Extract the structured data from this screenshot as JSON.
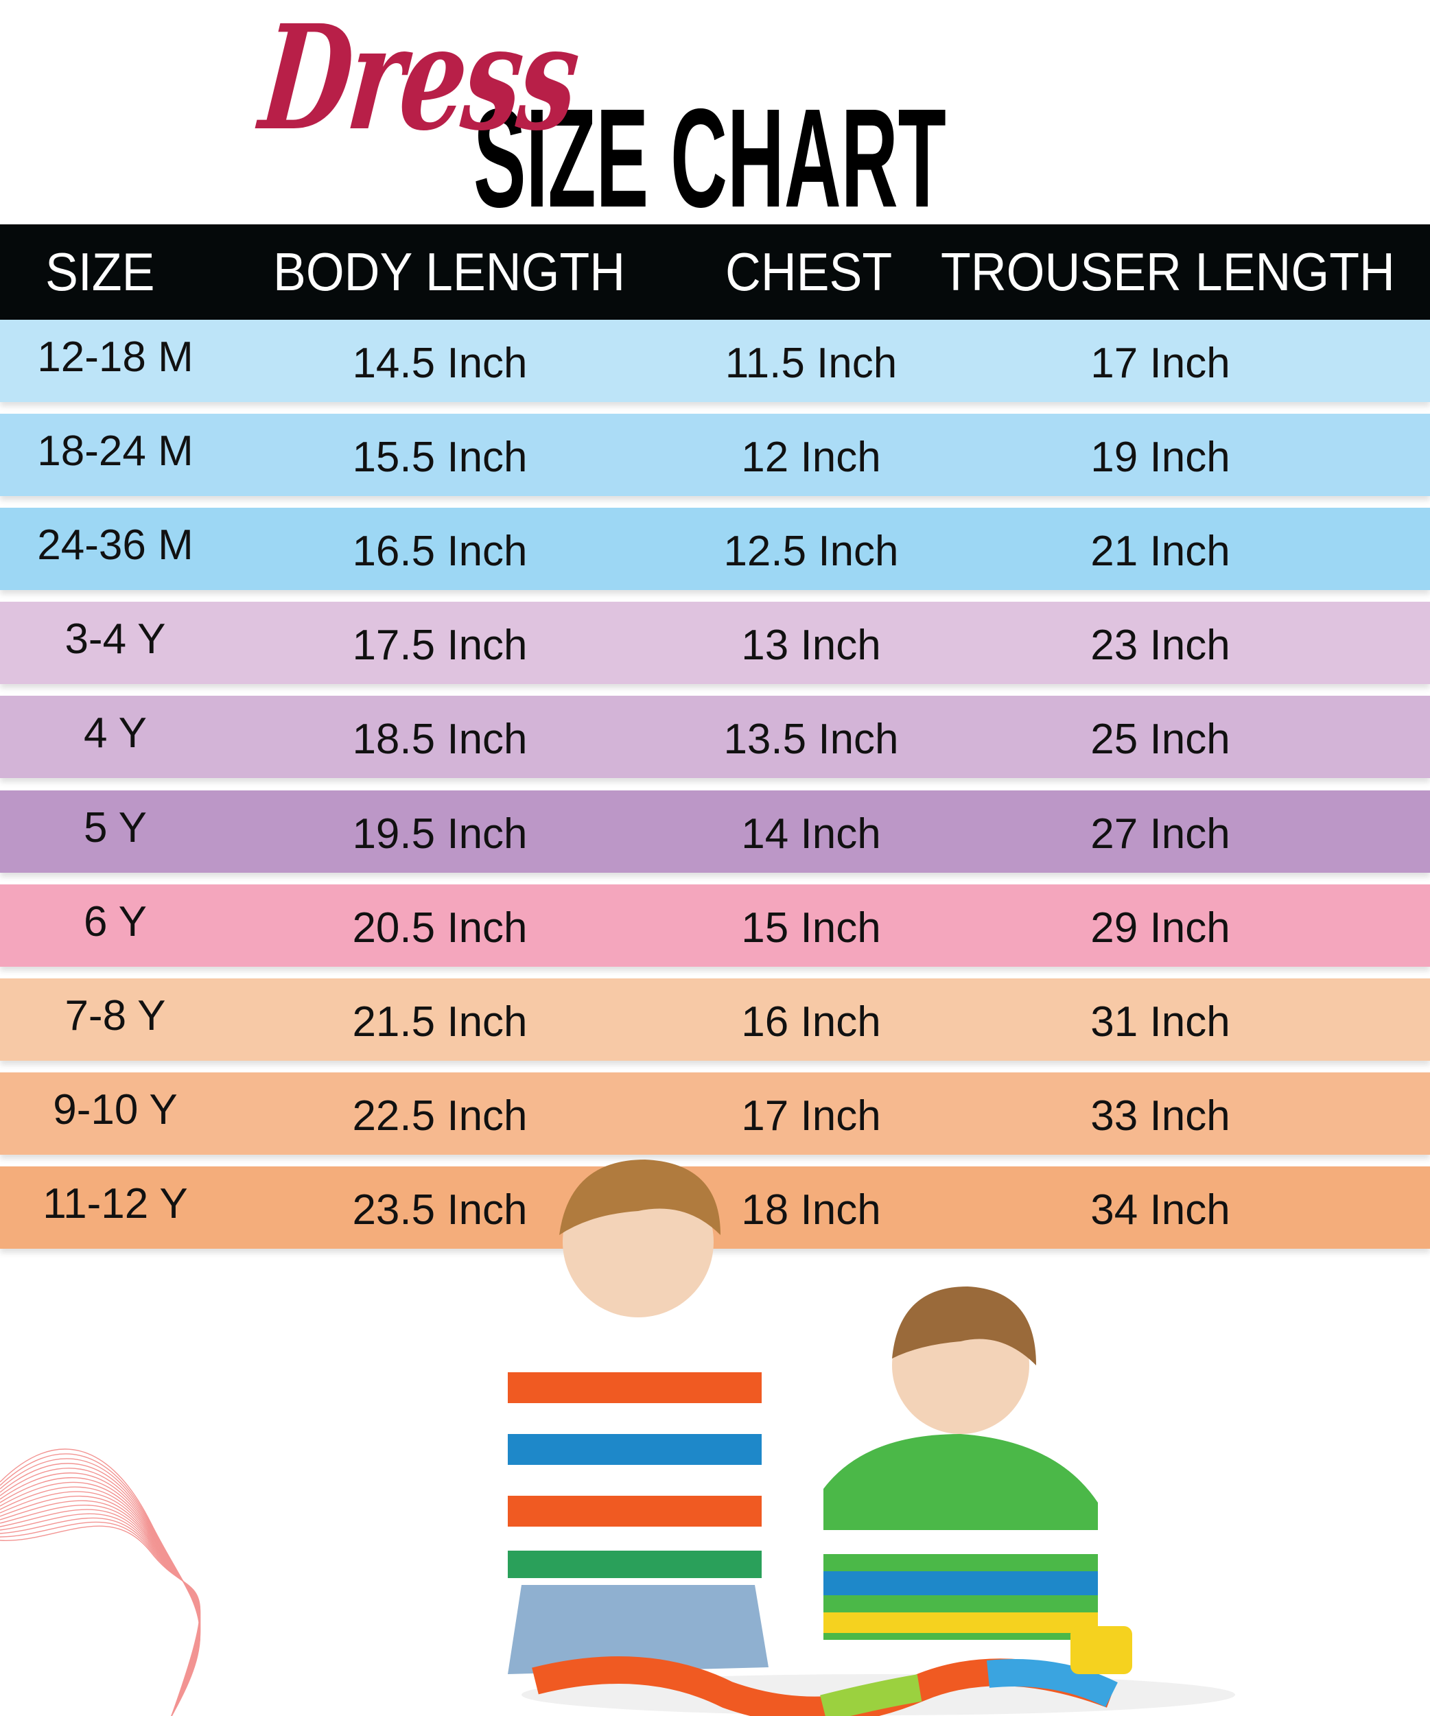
{
  "title": {
    "script": "Dress",
    "main": "SIZE CHART",
    "script_color": "#b81f48"
  },
  "table": {
    "headers": [
      "SIZE",
      "BODY LENGTH",
      "CHEST",
      "TROUSER LENGTH"
    ],
    "rows": [
      {
        "size": "12-18 M",
        "body": "14.5 Inch",
        "chest": "11.5 Inch",
        "trouser": "17 Inch",
        "color": "#bde4f8"
      },
      {
        "size": "18-24 M",
        "body": "15.5 Inch",
        "chest": "12 Inch",
        "trouser": "19 Inch",
        "color": "#abdcf6"
      },
      {
        "size": "24-36 M",
        "body": "16.5 Inch",
        "chest": "12.5 Inch",
        "trouser": "21 Inch",
        "color": "#9dd7f4"
      },
      {
        "size": "3-4 Y",
        "body": "17.5 Inch",
        "chest": "13 Inch",
        "trouser": "23 Inch",
        "color": "#dfc3df"
      },
      {
        "size": "4 Y",
        "body": "18.5 Inch",
        "chest": "13.5 Inch",
        "trouser": "25 Inch",
        "color": "#d3b4d7"
      },
      {
        "size": "5 Y",
        "body": "19.5 Inch",
        "chest": "14 Inch",
        "trouser": "27 Inch",
        "color": "#bc97c7"
      },
      {
        "size": "6 Y",
        "body": "20.5 Inch",
        "chest": "15 Inch",
        "trouser": "29 Inch",
        "color": "#f4a6bd"
      },
      {
        "size": "7-8 Y",
        "body": "21.5 Inch",
        "chest": "16 Inch",
        "trouser": "31 Inch",
        "color": "#f7c9a6"
      },
      {
        "size": "9-10 Y",
        "body": "22.5 Inch",
        "chest": "17 Inch",
        "trouser": "33 Inch",
        "color": "#f6b98f"
      },
      {
        "size": "11-12 Y",
        "body": "23.5 Inch",
        "chest": "18 Inch",
        "trouser": "34 Inch",
        "color": "#f4ad7b"
      }
    ]
  }
}
